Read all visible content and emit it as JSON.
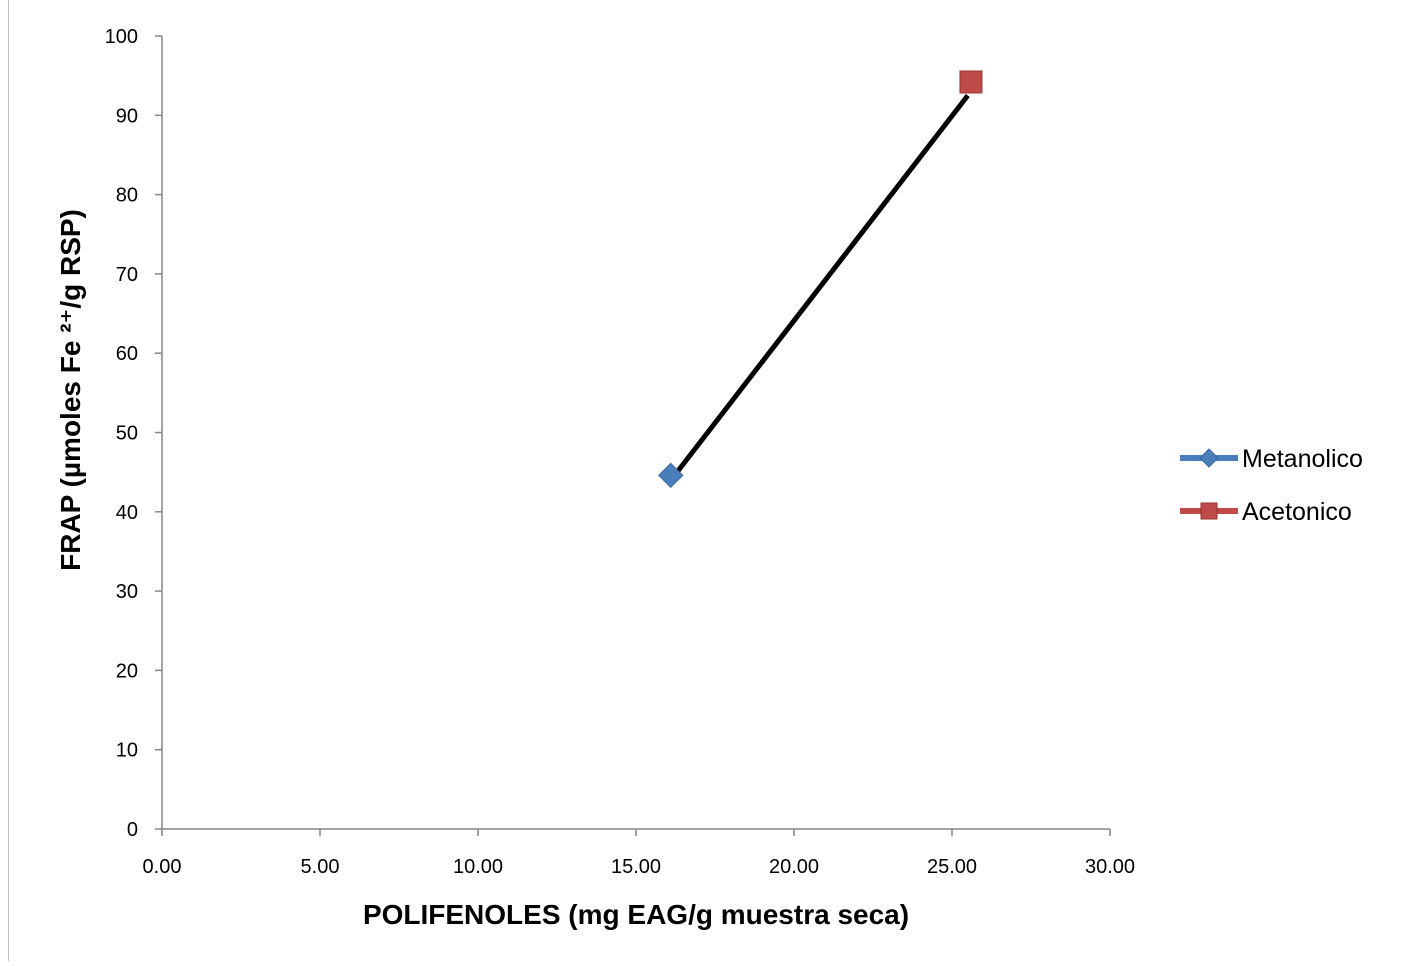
{
  "chart_data": {
    "type": "scatter",
    "xlabel": "POLIFENOLES (mg EAG/g muestra seca)",
    "ylabel": "FRAP (µmoles Fe ²⁺/g RSP)",
    "xlim": [
      0,
      30
    ],
    "ylim": [
      0,
      100
    ],
    "x_ticks": [
      "0.00",
      "5.00",
      "10.00",
      "15.00",
      "20.00",
      "25.00",
      "30.00"
    ],
    "y_ticks": [
      "0",
      "10",
      "20",
      "30",
      "40",
      "50",
      "60",
      "70",
      "80",
      "90",
      "100"
    ],
    "grid": false,
    "legend_position": "right",
    "series": [
      {
        "name": "Metanolico",
        "x": [
          16.1
        ],
        "y": [
          44.6
        ],
        "color": "#4a7ebb",
        "marker": "diamond"
      },
      {
        "name": "Acetonico",
        "x": [
          25.6
        ],
        "y": [
          94.2
        ],
        "color": "#be4b48",
        "marker": "square"
      }
    ],
    "trendline": {
      "x": [
        16.3,
        25.5
      ],
      "y": [
        45.0,
        92.5
      ],
      "color": "#000000"
    }
  }
}
